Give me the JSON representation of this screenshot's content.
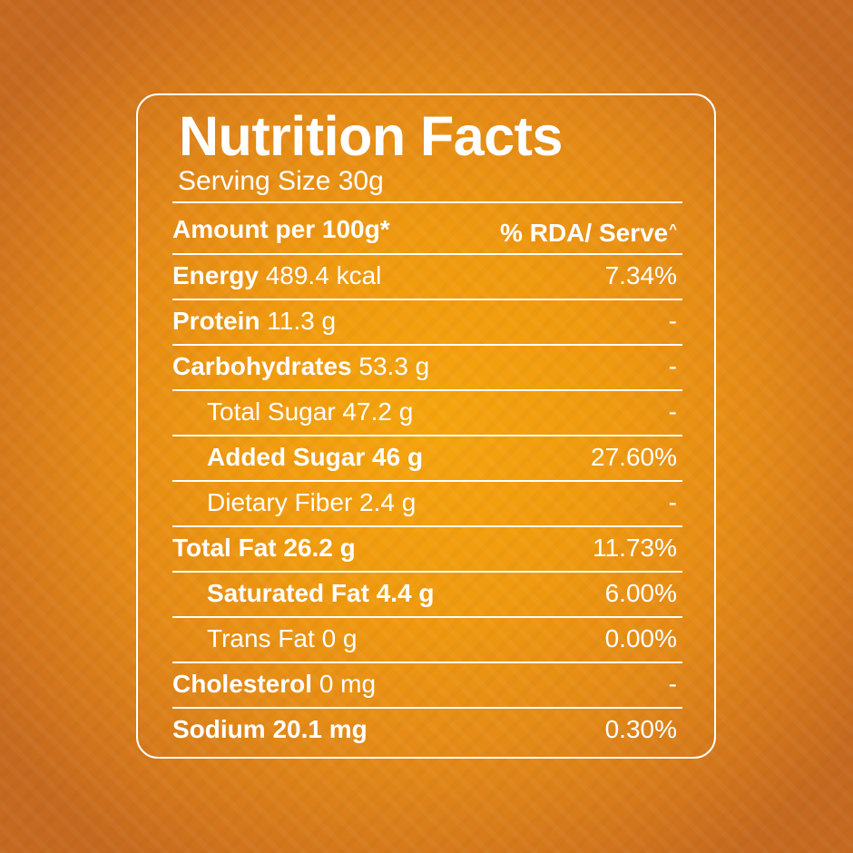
{
  "title": "Nutrition Facts",
  "serving_size": "Serving Size 30g",
  "header": {
    "left": "Amount per 100g*",
    "right": "% RDA/ Serve",
    "right_suffix": "^"
  },
  "rows": [
    {
      "name": "Energy",
      "amount": "489.4 kcal",
      "rda": "7.34%"
    },
    {
      "name": "Protein",
      "amount": "11.3 g",
      "rda": "-"
    },
    {
      "name": "Carbohydrates",
      "amount": "53.3 g",
      "rda": "-"
    },
    {
      "name": "Total Sugar",
      "amount": "47.2 g",
      "rda": "-"
    },
    {
      "name": "Added Sugar",
      "amount": "46 g",
      "rda": "27.60%"
    },
    {
      "name": "Dietary Fiber",
      "amount": "2.4 g",
      "rda": "-"
    },
    {
      "name": "Total Fat",
      "amount": "26.2 g",
      "rda": "11.73%"
    },
    {
      "name": "Saturated Fat",
      "amount": "4.4 g",
      "rda": "6.00%"
    },
    {
      "name": "Trans Fat",
      "amount": "0 g",
      "rda": "0.00%"
    },
    {
      "name": "Cholesterol",
      "amount": "0 mg",
      "rda": "-"
    },
    {
      "name": "Sodium",
      "amount": "20.1 mg",
      "rda": "0.30%"
    }
  ],
  "colors": {
    "background_center": "#f6a50d",
    "background_edge": "#c4691f",
    "text": "#ffffff"
  }
}
